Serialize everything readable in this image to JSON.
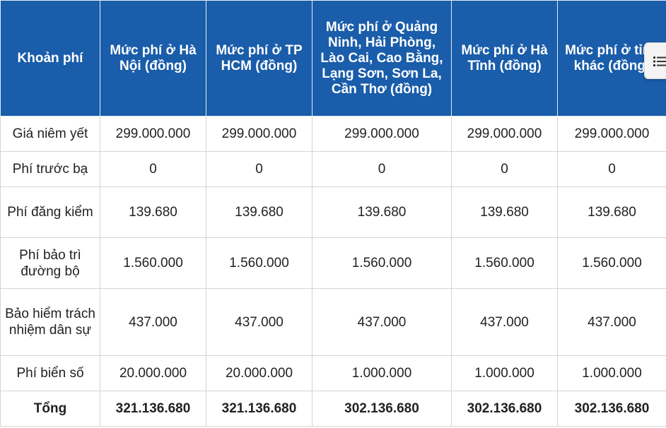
{
  "table": {
    "headers": [
      "Khoản phí",
      "Mức phí ở Hà Nội (đồng)",
      "Mức phí ở TP HCM (đồng)",
      "Mức phí ở Quảng Ninh, Hải Phòng, Lào Cai, Cao Bằng, Lạng Sơn, Sơn La, Cần Thơ (đồng)",
      "Mức phí ở Hà Tĩnh (đồng)",
      "Mức phí ở tỉnh khác (đồng)"
    ],
    "rows": [
      [
        "Giá niêm yết",
        "299.000.000",
        "299.000.000",
        "299.000.000",
        "299.000.000",
        "299.000.000"
      ],
      [
        "Phí trước bạ",
        "0",
        "0",
        "0",
        "0",
        "0"
      ],
      [
        "Phí đăng kiểm",
        "139.680",
        "139.680",
        "139.680",
        "139.680",
        "139.680"
      ],
      [
        "Phí bảo trì đường bộ",
        "1.560.000",
        "1.560.000",
        "1.560.000",
        "1.560.000",
        "1.560.000"
      ],
      [
        "Bảo hiểm trách nhiệm dân sự",
        "437.000",
        "437.000",
        "437.000",
        "437.000",
        "437.000"
      ],
      [
        "Phí biển số",
        "20.000.000",
        "20.000.000",
        "1.000.000",
        "1.000.000",
        "1.000.000"
      ]
    ],
    "total": [
      "Tổng",
      "321.136.680",
      "321.136.680",
      "302.136.680",
      "302.136.680",
      "302.136.680"
    ]
  },
  "toc_button": {
    "icon": "list-icon"
  },
  "colors": {
    "header_bg": "#1a5daa",
    "header_text": "#ffffff",
    "border": "#d4d4d4"
  }
}
